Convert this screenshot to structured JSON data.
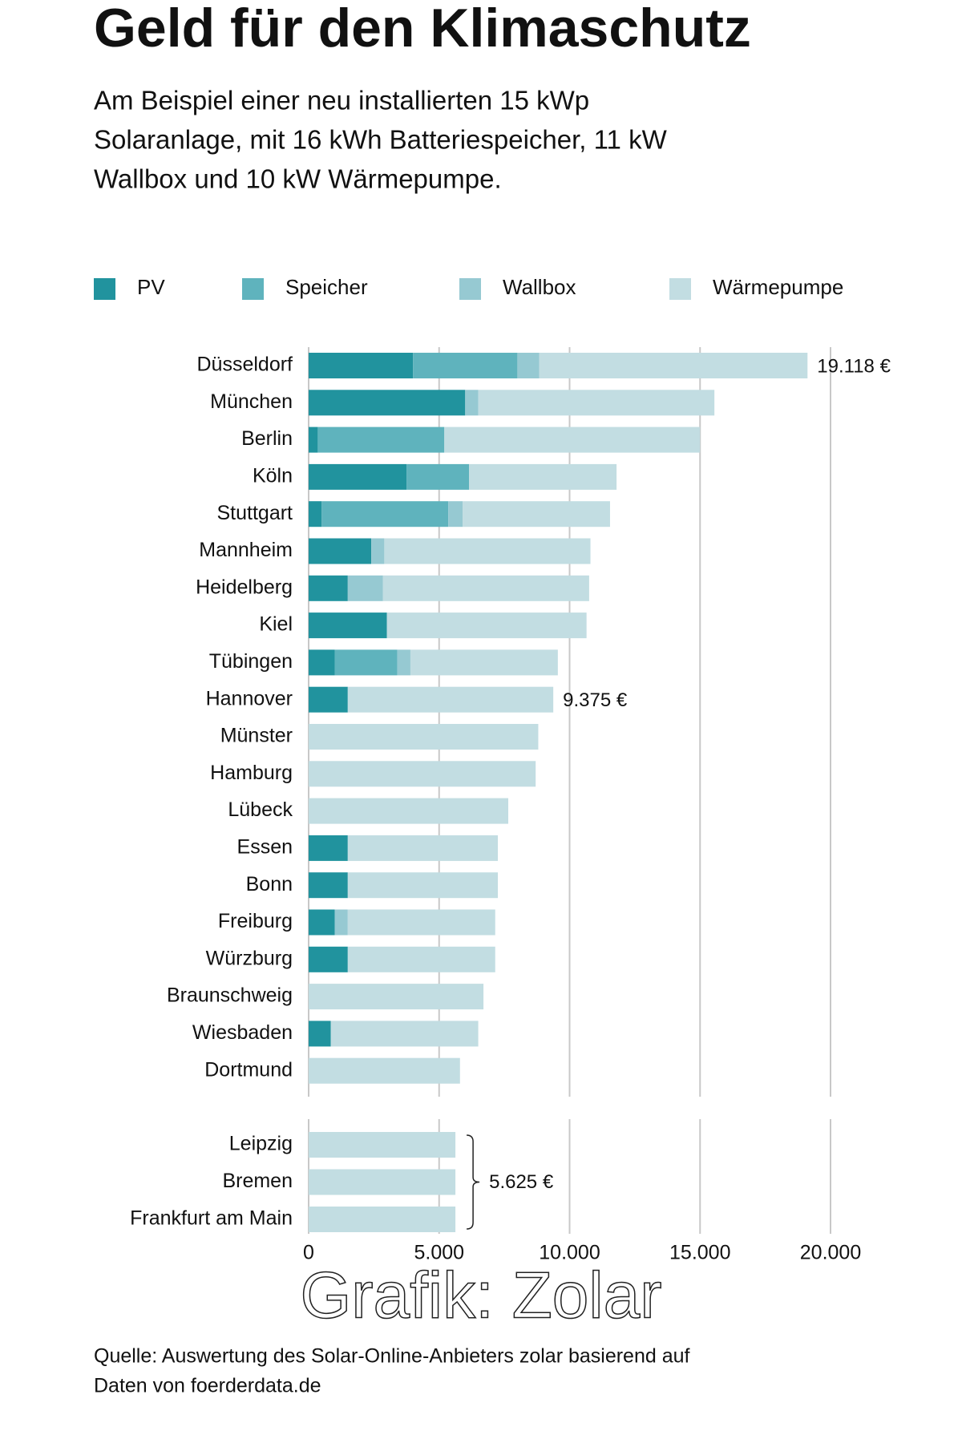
{
  "chart_data": [
    {
      "type": "stacked-bar-horizontal",
      "title": "Geld für den Klimaschutz",
      "subtitle": [
        "Am Beispiel einer neu installierten 15 kWp",
        "Solaranlage, mit 16 kWh Batteriespeicher, 11 kW",
        "Wallbox und 10 kW Wärmepumpe."
      ],
      "categories": [
        "Düsseldorf",
        "München",
        "Berlin",
        "Köln",
        "Stuttgart",
        "Mannheim",
        "Heidelberg",
        "Kiel",
        "Tübingen",
        "Hannover",
        "Münster",
        "Hamburg",
        "Lübeck",
        "Essen",
        "Bonn",
        "Freiburg",
        "Würzburg",
        "Braunschweig",
        "Wiesbaden",
        "Dortmund"
      ],
      "series": [
        {
          "name": "PV",
          "color": "#21939e",
          "values": [
            4000,
            6000,
            350,
            3750,
            500,
            2400,
            1500,
            3000,
            1000,
            1500,
            0,
            0,
            0,
            1500,
            1500,
            1000,
            1500,
            0,
            850,
            0
          ]
        },
        {
          "name": "Speicher",
          "color": "#5fb3bd",
          "values": [
            4000,
            0,
            4850,
            2400,
            4850,
            0,
            0,
            0,
            2400,
            0,
            0,
            0,
            0,
            0,
            0,
            0,
            0,
            0,
            0,
            0
          ]
        },
        {
          "name": "Wallbox",
          "color": "#96c9d2",
          "values": [
            840,
            500,
            0,
            0,
            550,
            500,
            1350,
            0,
            500,
            0,
            0,
            0,
            0,
            0,
            0,
            500,
            0,
            0,
            0,
            0
          ]
        },
        {
          "name": "Wärmepumpe",
          "color": "#c2dde2",
          "values": [
            10278,
            9050,
            9800,
            5650,
            5650,
            7900,
            7900,
            7650,
            5650,
            7875,
            8800,
            8700,
            7650,
            5750,
            5750,
            5650,
            5650,
            6700,
            5650,
            5800
          ]
        }
      ],
      "annotations": [
        {
          "text": "19.118 €",
          "value": 19118,
          "category": "Düsseldorf"
        },
        {
          "text": "9.375 €",
          "value": 9375,
          "category": "Hannover"
        }
      ],
      "xlim": [
        0,
        20000
      ],
      "xticks": [
        0,
        5000,
        10000,
        15000,
        20000
      ],
      "grid": true,
      "legend": "top"
    },
    {
      "type": "stacked-bar-horizontal",
      "categories": [
        "Leipzig",
        "Bremen",
        "Frankfurt am Main"
      ],
      "series": [
        {
          "color": "#c2dde2",
          "values": [
            5625,
            5625,
            5625
          ]
        }
      ],
      "annotations": [
        {
          "text": "5.625 €",
          "value": 5625,
          "categories": [
            "Leipzig",
            "Bremen",
            "Frankfurt am Main"
          ]
        }
      ],
      "xlim": [
        0,
        20000
      ],
      "xticks": [
        0,
        {
          "value": 5000,
          "label": "5.000"
        },
        {
          "value": 10000,
          "label": "10.000"
        },
        {
          "value": 15000,
          "label": "15.000"
        },
        {
          "value": 20000,
          "label": "20.000"
        }
      ],
      "grid": true
    }
  ],
  "credit": "Grafik: Zolar",
  "source": [
    "Quelle: Auswertung des Solar-Online-Anbieters zolar basierend auf",
    "Daten von foerderdata.de"
  ]
}
